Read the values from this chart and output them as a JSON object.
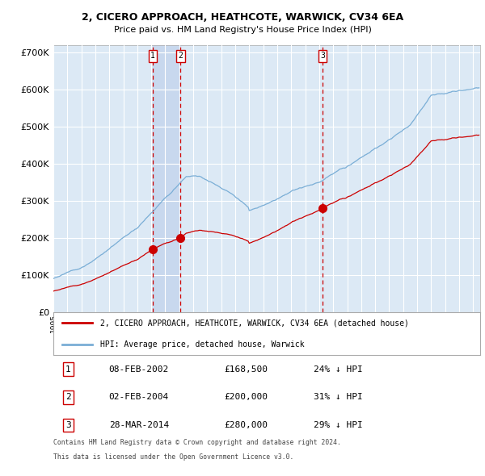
{
  "title1": "2, CICERO APPROACH, HEATHCOTE, WARWICK, CV34 6EA",
  "title2": "Price paid vs. HM Land Registry's House Price Index (HPI)",
  "legend_red": "2, CICERO APPROACH, HEATHCOTE, WARWICK, CV34 6EA (detached house)",
  "legend_blue": "HPI: Average price, detached house, Warwick",
  "sales": [
    {
      "num": 1,
      "date_label": "08-FEB-2002",
      "date_x": 2002.1,
      "price": 168500
    },
    {
      "num": 2,
      "date_label": "02-FEB-2004",
      "date_x": 2004.09,
      "price": 200000
    },
    {
      "num": 3,
      "date_label": "28-MAR-2014",
      "date_x": 2014.24,
      "price": 280000
    }
  ],
  "table_rows": [
    [
      1,
      "08-FEB-2002",
      "£168,500",
      "24% ↓ HPI"
    ],
    [
      2,
      "02-FEB-2004",
      "£200,000",
      "31% ↓ HPI"
    ],
    [
      3,
      "28-MAR-2014",
      "£280,000",
      "29% ↓ HPI"
    ]
  ],
  "footer_line1": "Contains HM Land Registry data © Crown copyright and database right 2024.",
  "footer_line2": "This data is licensed under the Open Government Licence v3.0.",
  "ylim": [
    0,
    720000
  ],
  "yticks": [
    0,
    100000,
    200000,
    300000,
    400000,
    500000,
    600000,
    700000
  ],
  "xlim_start": 1995.0,
  "xlim_end": 2025.5,
  "background_chart": "#dce9f5",
  "background_sale": "#c8d8ee",
  "grid_color": "#ffffff",
  "line_red": "#cc0000",
  "line_blue": "#7aaed6",
  "dashed_color": "#cc0000"
}
